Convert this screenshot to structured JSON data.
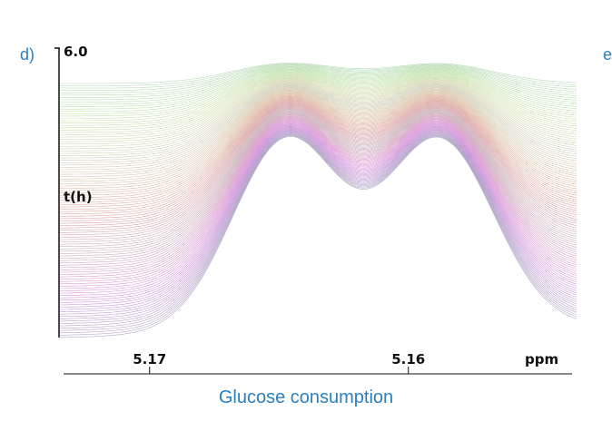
{
  "panel_labels": {
    "left": "d)",
    "right": "e"
  },
  "caption": "Glucose consumption",
  "colors": {
    "caption": "#2a7fc1",
    "spectrum_base": "#9a9aa8",
    "peak_highlight_early": "#3c2a7a",
    "peak_highlight_mid": "#2fb8a0",
    "peak_highlight_late": "#5ad0e0"
  },
  "chart_data": {
    "type": "line",
    "description_kind": "stacked NMR spectra (waterfall)",
    "xlabel": "ppm",
    "x_tick_labels": [
      "5.17",
      "5.16"
    ],
    "x_ticks": [
      5.17,
      5.16
    ],
    "x_reversed": true,
    "xlim": [
      5.1735,
      5.1535
    ],
    "ylabel": "t(h)",
    "y_tick_labels": [
      "6.0"
    ],
    "ylim": [
      0,
      6.0
    ],
    "peaks_ppm": [
      5.1647,
      5.1588
    ],
    "n_traces": 110,
    "grid": false,
    "legend": "none"
  }
}
